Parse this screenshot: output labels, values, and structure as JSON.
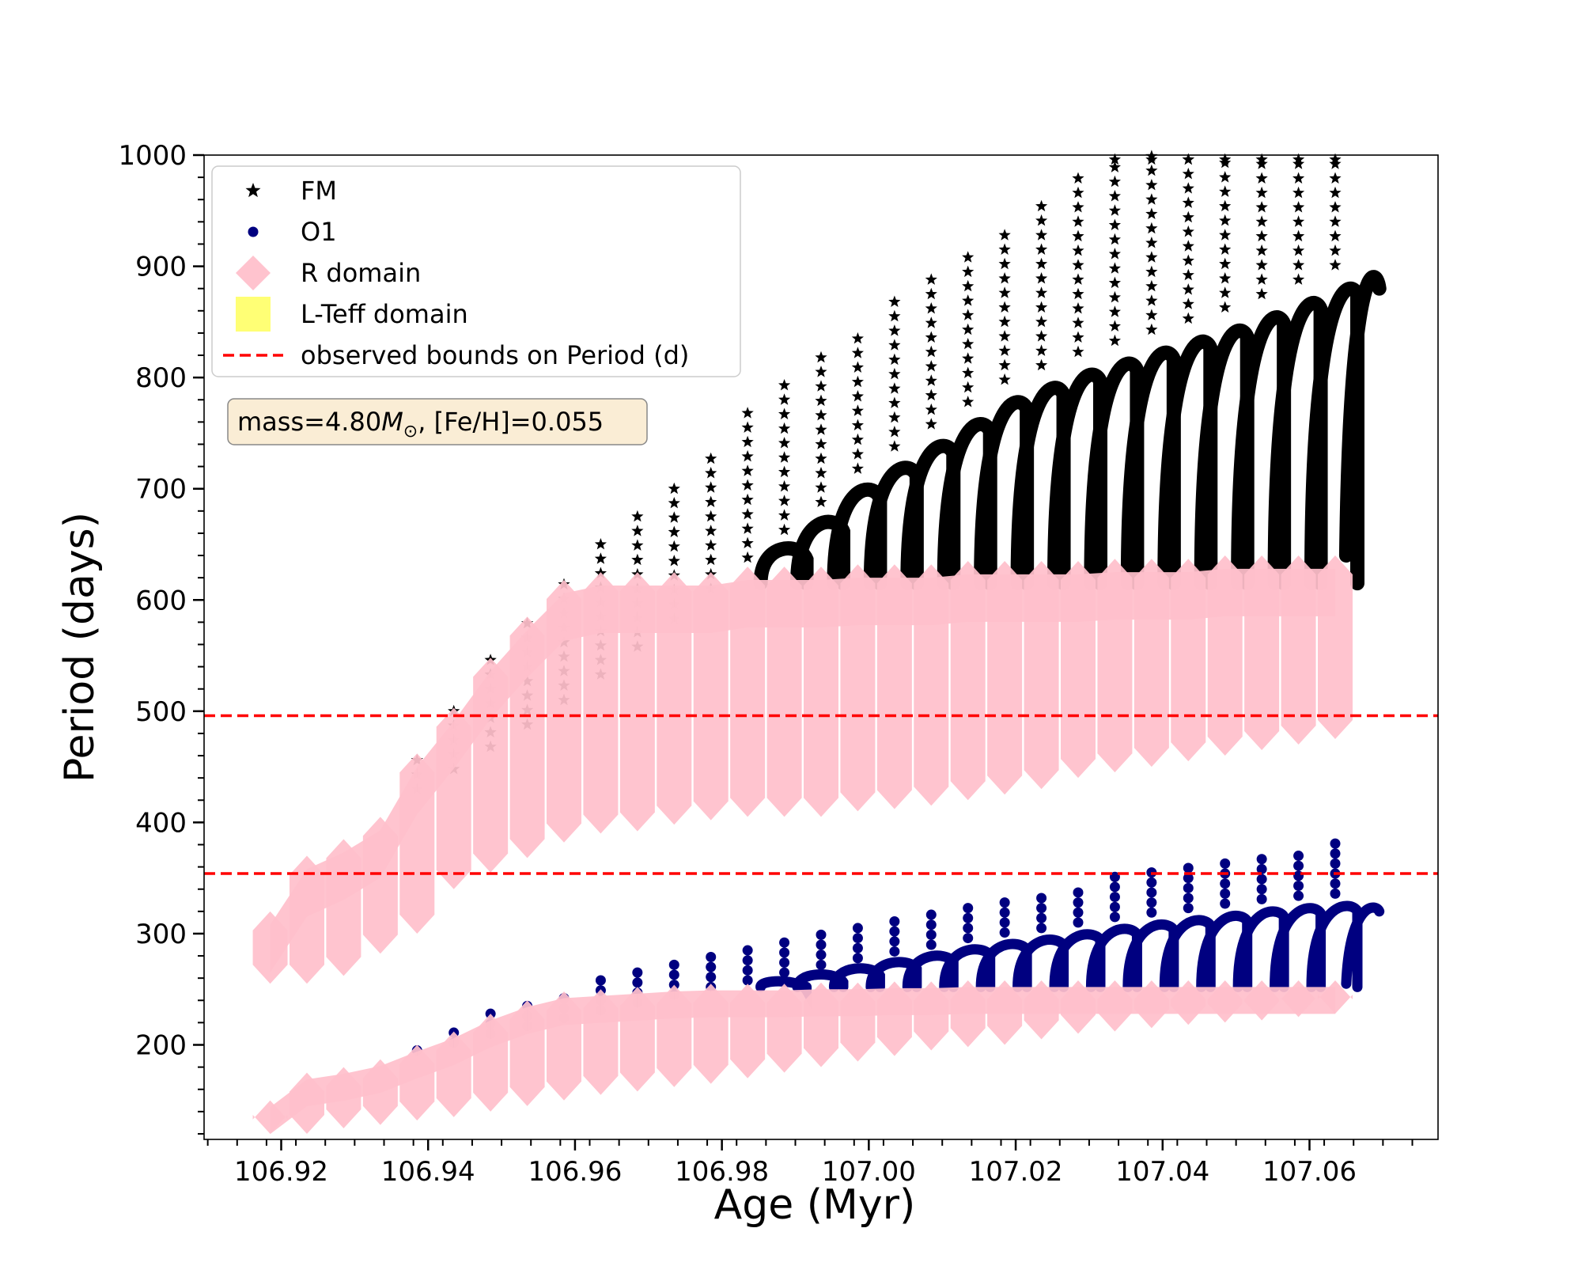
{
  "chart_data": {
    "type": "scatter",
    "title": "",
    "xlabel": "Age (Myr)",
    "ylabel": "Period (days)",
    "xlim": [
      106.9095,
      107.0775
    ],
    "ylim": [
      115,
      1000
    ],
    "xticks": [
      106.92,
      106.94,
      106.96,
      106.98,
      107.0,
      107.02,
      107.04,
      107.06
    ],
    "xtick_labels": [
      "106.92",
      "106.94",
      "106.96",
      "106.98",
      "107.00",
      "107.02",
      "107.04",
      "107.06"
    ],
    "yticks": [
      200,
      300,
      400,
      500,
      600,
      700,
      800,
      900,
      1000
    ],
    "ytick_labels": [
      "200",
      "300",
      "400",
      "500",
      "600",
      "700",
      "800",
      "900",
      "1000"
    ],
    "grid": false,
    "legend_position": "top-left",
    "legend": [
      {
        "label": "FM",
        "marker": "star",
        "color": "#000000"
      },
      {
        "label": "O1",
        "marker": "circle",
        "color": "#000080"
      },
      {
        "label": "R domain",
        "marker": "diamond",
        "color": "#ffc0cb"
      },
      {
        "label": "L-Teff domain",
        "marker": "square",
        "color": "#ffff66"
      },
      {
        "label": "observed bounds on Period (d)",
        "marker": "dashed-line",
        "color": "#ff0000"
      }
    ],
    "annotation": {
      "prefix": "mass=4.80",
      "symbol": "M",
      "subscript": "⊙",
      "suffix": ", [Fe/H]=0.055"
    },
    "hlines": [
      496,
      354
    ],
    "series": [
      {
        "name": "FM",
        "description": "Fundamental-mode period sequence; each vertical streak is one pulse-cycle step in age",
        "ages": [
          106.9185,
          106.9235,
          106.9285,
          106.9335,
          106.9385,
          106.9435,
          106.9485,
          106.9535,
          106.9585,
          106.9635,
          106.9685,
          106.9735,
          106.9785,
          106.9835,
          106.9885,
          106.9935,
          106.9985,
          107.0035,
          107.0085,
          107.0135,
          107.0185,
          107.0235,
          107.0285,
          107.0335,
          107.0385,
          107.0435,
          107.0485,
          107.0535,
          107.0585,
          107.0635
        ],
        "period_low": [
          255,
          255,
          262,
          282,
          300,
          340,
          355,
          368,
          382,
          390,
          392,
          398,
          402,
          405,
          405,
          405,
          410,
          412,
          415,
          420,
          425,
          430,
          440,
          445,
          450,
          455,
          460,
          465,
          470,
          475
        ],
        "period_high": [
          320,
          370,
          385,
          412,
          462,
          503,
          548,
          585,
          618,
          650,
          685,
          710,
          738,
          770,
          795,
          818,
          845,
          870,
          892,
          913,
          938,
          958,
          985,
          1000,
          1000,
          1000,
          1000,
          1000,
          1000,
          1000
        ],
        "period_envelope": [
          362,
          372,
          385,
          398,
          412,
          430,
          450,
          470,
          492,
          515,
          540,
          565,
          592,
          620,
          645,
          670,
          700,
          720,
          740,
          760,
          780,
          793,
          805,
          815,
          825,
          835,
          845,
          857,
          870,
          883
        ]
      },
      {
        "name": "O1",
        "description": "First-overtone period sequence",
        "ages": [
          106.9185,
          106.9235,
          106.9285,
          106.9335,
          106.9385,
          106.9435,
          106.9485,
          106.9535,
          106.9585,
          106.9635,
          106.9685,
          106.9735,
          106.9785,
          106.9835,
          106.9885,
          106.9935,
          106.9985,
          107.0035,
          107.0085,
          107.0135,
          107.0185,
          107.0235,
          107.0285,
          107.0335,
          107.0385,
          107.0435,
          107.0485,
          107.0535,
          107.0585,
          107.0635
        ],
        "period_low": [
          120,
          120,
          125,
          128,
          132,
          135,
          140,
          145,
          150,
          155,
          158,
          162,
          165,
          170,
          175,
          180,
          185,
          190,
          195,
          198,
          200,
          205,
          210,
          212,
          215,
          218,
          220,
          222,
          225,
          228
        ],
        "period_high": [
          150,
          175,
          180,
          187,
          200,
          212,
          228,
          240,
          250,
          260,
          270,
          278,
          285,
          292,
          300,
          306,
          312,
          318,
          323,
          328,
          333,
          340,
          345,
          351,
          355,
          359,
          363,
          368,
          373,
          381
        ],
        "period_envelope": [
          160,
          166,
          172,
          178,
          185,
          192,
          200,
          207,
          214,
          221,
          228,
          235,
          242,
          248,
          255,
          262,
          268,
          274,
          280,
          286,
          291,
          295,
          300,
          305,
          309,
          313,
          317,
          321,
          324,
          326
        ]
      }
    ],
    "r_domain": {
      "FM_band": [
        [
          106.9185,
          255,
          320
        ],
        [
          106.9235,
          255,
          370
        ],
        [
          106.9285,
          262,
          385
        ],
        [
          106.9335,
          282,
          405
        ],
        [
          106.9385,
          300,
          462
        ],
        [
          106.9435,
          340,
          503
        ],
        [
          106.9485,
          355,
          548
        ],
        [
          106.9535,
          368,
          585
        ],
        [
          106.9585,
          382,
          618
        ],
        [
          106.9635,
          390,
          625
        ],
        [
          106.9685,
          392,
          625
        ],
        [
          106.9735,
          398,
          625
        ],
        [
          106.9785,
          402,
          625
        ],
        [
          106.9835,
          405,
          630
        ],
        [
          106.9885,
          405,
          630
        ],
        [
          106.9935,
          405,
          630
        ],
        [
          106.9985,
          410,
          632
        ],
        [
          107.0035,
          412,
          632
        ],
        [
          107.0085,
          415,
          632
        ],
        [
          107.0135,
          420,
          635
        ],
        [
          107.0185,
          425,
          635
        ],
        [
          107.0235,
          430,
          635
        ],
        [
          107.0285,
          440,
          635
        ],
        [
          107.0335,
          445,
          637
        ],
        [
          107.0385,
          450,
          637
        ],
        [
          107.0435,
          455,
          637
        ],
        [
          107.0485,
          460,
          640
        ],
        [
          107.0535,
          465,
          640
        ],
        [
          107.0585,
          470,
          640
        ],
        [
          107.0635,
          475,
          640
        ]
      ],
      "O1_band": [
        [
          106.9185,
          120,
          150
        ],
        [
          106.9235,
          120,
          175
        ],
        [
          106.9285,
          125,
          180
        ],
        [
          106.9335,
          128,
          187
        ],
        [
          106.9385,
          132,
          200
        ],
        [
          106.9435,
          135,
          212
        ],
        [
          106.9485,
          140,
          228
        ],
        [
          106.9535,
          145,
          240
        ],
        [
          106.9585,
          150,
          248
        ],
        [
          106.9635,
          155,
          250
        ],
        [
          106.9685,
          158,
          252
        ],
        [
          106.9735,
          162,
          254
        ],
        [
          106.9785,
          165,
          255
        ],
        [
          106.9835,
          170,
          255
        ],
        [
          106.9885,
          175,
          255
        ],
        [
          106.9935,
          180,
          256
        ],
        [
          106.9985,
          185,
          256
        ],
        [
          107.0035,
          190,
          257
        ],
        [
          107.0085,
          195,
          257
        ],
        [
          107.0135,
          198,
          258
        ],
        [
          107.0185,
          200,
          258
        ],
        [
          107.0235,
          205,
          258
        ],
        [
          107.0285,
          210,
          258
        ],
        [
          107.0335,
          212,
          258
        ],
        [
          107.0385,
          215,
          258
        ],
        [
          107.0435,
          218,
          258
        ],
        [
          107.0485,
          220,
          258
        ],
        [
          107.0535,
          222,
          258
        ],
        [
          107.0585,
          225,
          258
        ],
        [
          107.0635,
          228,
          258
        ]
      ]
    }
  }
}
